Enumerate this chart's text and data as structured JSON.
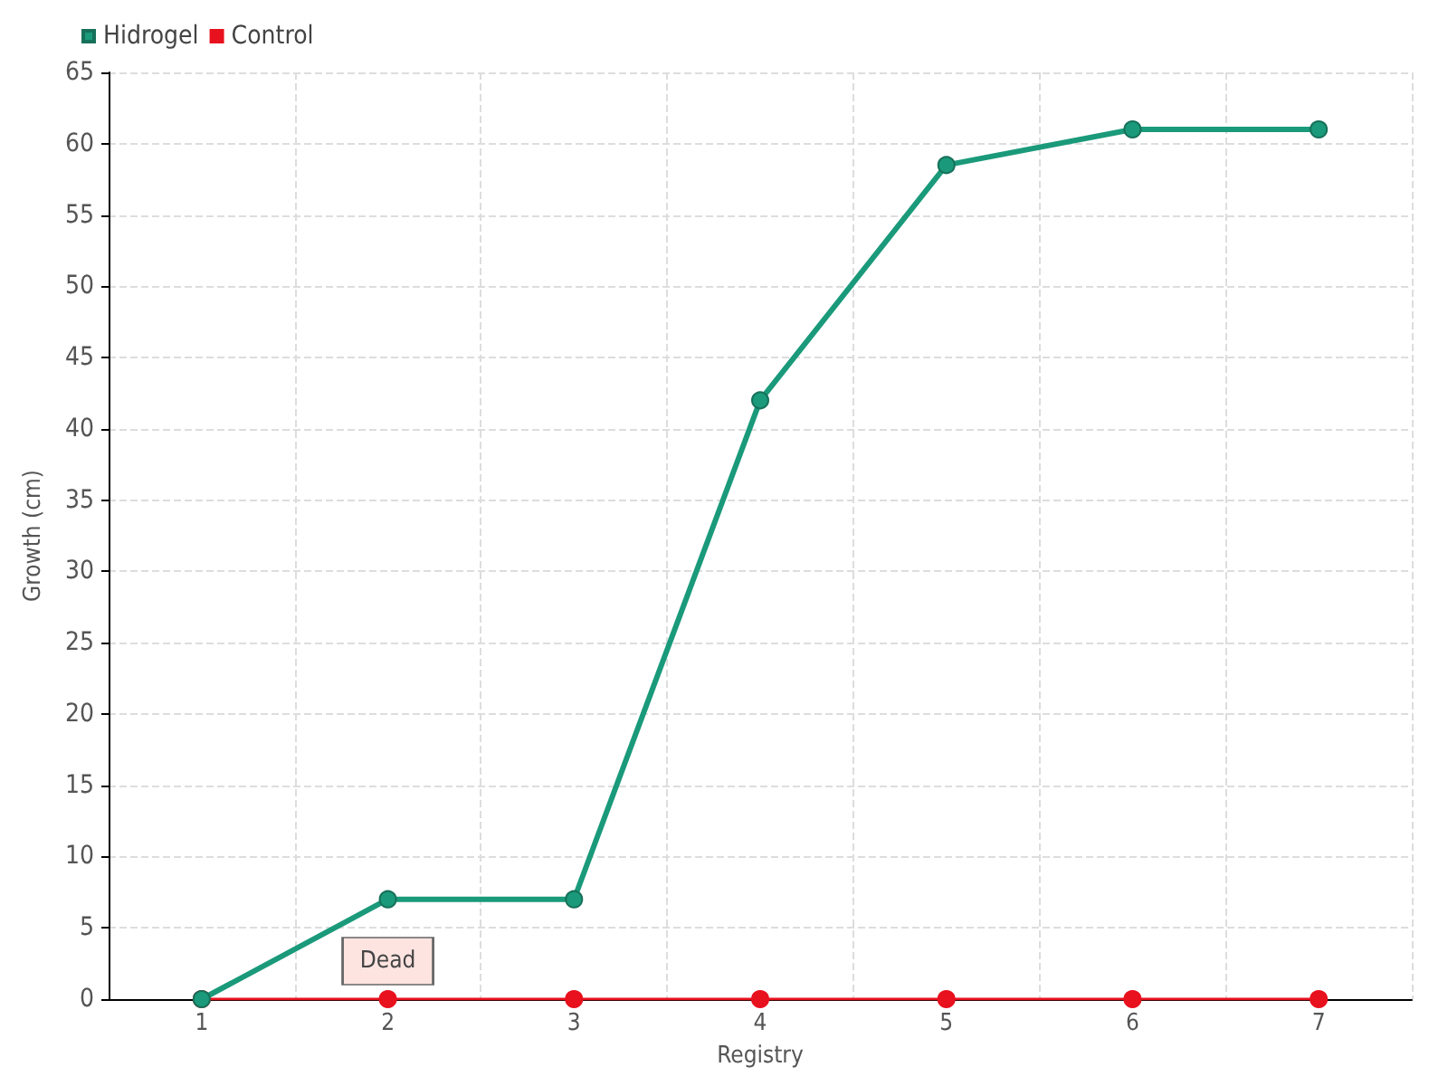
{
  "chart_data": {
    "type": "line",
    "xlabel": "Registry",
    "ylabel": "Growth (cm)",
    "categories": [
      "1",
      "2",
      "3",
      "4",
      "5",
      "6",
      "7"
    ],
    "series": [
      {
        "name": "Hidrogel",
        "color": "#1a9a7a",
        "values": [
          0,
          7,
          7,
          42,
          58.5,
          61,
          61
        ]
      },
      {
        "name": "Control",
        "color": "#e8111e",
        "values": [
          0,
          0,
          0,
          0,
          0,
          0,
          0
        ]
      }
    ],
    "annotations": [
      {
        "text": "Dead",
        "x": "2",
        "y": 0
      }
    ],
    "ylim": [
      0,
      65
    ],
    "yticks": [
      0,
      5,
      10,
      15,
      20,
      25,
      30,
      35,
      40,
      45,
      50,
      55,
      60,
      65
    ],
    "grid": true,
    "legend": "top left",
    "marker": "circle",
    "line_style": "solid"
  }
}
